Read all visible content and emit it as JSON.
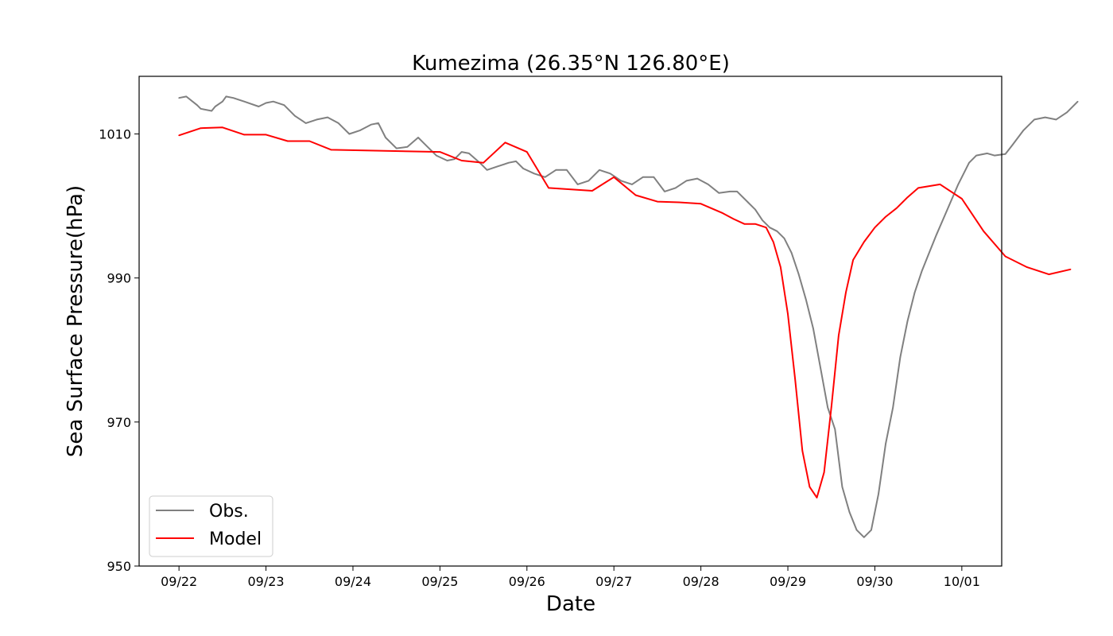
{
  "chart_data": {
    "type": "line",
    "title": "Kumezima (26.35°N 126.80°E)",
    "xlabel": "Date",
    "ylabel": "Sea Surface Pressure(hPa)",
    "xlim": [
      "09/21 13:00",
      "10/01 11:00"
    ],
    "ylim": [
      950,
      1018
    ],
    "x_ticks": [
      "09/22",
      "09/23",
      "09/24",
      "09/25",
      "09/26",
      "09/27",
      "09/28",
      "09/29",
      "09/30",
      "10/01"
    ],
    "y_ticks": [
      950,
      970,
      990,
      1010
    ],
    "grid": false,
    "legend_position": "lower-left",
    "series": [
      {
        "name": "Obs.",
        "color": "#808080",
        "points": [
          [
            "09/22 00:00",
            1015.0
          ],
          [
            "09/22 02:00",
            1015.2
          ],
          [
            "09/22 05:00",
            1014.0
          ],
          [
            "09/22 06:00",
            1013.5
          ],
          [
            "09/22 09:00",
            1013.2
          ],
          [
            "09/22 10:00",
            1013.8
          ],
          [
            "09/22 12:00",
            1014.5
          ],
          [
            "09/22 13:00",
            1015.2
          ],
          [
            "09/22 15:00",
            1015.0
          ],
          [
            "09/22 18:00",
            1014.5
          ],
          [
            "09/22 22:00",
            1013.8
          ],
          [
            "09/23 00:00",
            1014.3
          ],
          [
            "09/23 02:00",
            1014.5
          ],
          [
            "09/23 05:00",
            1014.0
          ],
          [
            "09/23 08:00",
            1012.5
          ],
          [
            "09/23 11:00",
            1011.5
          ],
          [
            "09/23 14:00",
            1012.0
          ],
          [
            "09/23 17:00",
            1012.3
          ],
          [
            "09/23 20:00",
            1011.5
          ],
          [
            "09/23 23:00",
            1010.0
          ],
          [
            "09/24 02:00",
            1010.5
          ],
          [
            "09/24 05:00",
            1011.3
          ],
          [
            "09/24 07:00",
            1011.5
          ],
          [
            "09/24 09:00",
            1009.5
          ],
          [
            "09/24 12:00",
            1008.0
          ],
          [
            "09/24 15:00",
            1008.2
          ],
          [
            "09/24 18:00",
            1009.5
          ],
          [
            "09/24 20:00",
            1008.5
          ],
          [
            "09/24 23:00",
            1007.0
          ],
          [
            "09/25 02:00",
            1006.3
          ],
          [
            "09/25 04:00",
            1006.5
          ],
          [
            "09/25 06:00",
            1007.5
          ],
          [
            "09/25 08:00",
            1007.3
          ],
          [
            "09/25 11:00",
            1006.0
          ],
          [
            "09/25 13:00",
            1005.0
          ],
          [
            "09/25 16:00",
            1005.5
          ],
          [
            "09/25 19:00",
            1006.0
          ],
          [
            "09/25 21:00",
            1006.2
          ],
          [
            "09/25 23:00",
            1005.2
          ],
          [
            "09/26 02:00",
            1004.5
          ],
          [
            "09/26 05:00",
            1004.0
          ],
          [
            "09/26 08:00",
            1005.0
          ],
          [
            "09/26 11:00",
            1005.0
          ],
          [
            "09/26 14:00",
            1003.0
          ],
          [
            "09/26 17:00",
            1003.5
          ],
          [
            "09/26 20:00",
            1005.0
          ],
          [
            "09/26 23:00",
            1004.5
          ],
          [
            "09/27 02:00",
            1003.5
          ],
          [
            "09/27 05:00",
            1003.0
          ],
          [
            "09/27 08:00",
            1004.0
          ],
          [
            "09/27 11:00",
            1004.0
          ],
          [
            "09/27 14:00",
            1002.0
          ],
          [
            "09/27 17:00",
            1002.5
          ],
          [
            "09/27 20:00",
            1003.5
          ],
          [
            "09/27 23:00",
            1003.8
          ],
          [
            "09/28 02:00",
            1003.0
          ],
          [
            "09/28 05:00",
            1001.8
          ],
          [
            "09/28 08:00",
            1002.0
          ],
          [
            "09/28 10:00",
            1002.0
          ],
          [
            "09/28 13:00",
            1000.5
          ],
          [
            "09/28 15:00",
            999.5
          ],
          [
            "09/28 17:00",
            998.0
          ],
          [
            "09/28 19:00",
            997.0
          ],
          [
            "09/28 21:00",
            996.5
          ],
          [
            "09/28 23:00",
            995.5
          ],
          [
            "09/29 01:00",
            993.5
          ],
          [
            "09/29 03:00",
            990.5
          ],
          [
            "09/29 05:00",
            987.0
          ],
          [
            "09/29 07:00",
            983.0
          ],
          [
            "09/29 09:00",
            977.5
          ],
          [
            "09/29 11:00",
            972.0
          ],
          [
            "09/29 13:00",
            969.0
          ],
          [
            "09/29 15:00",
            961.0
          ],
          [
            "09/29 17:00",
            957.5
          ],
          [
            "09/29 19:00",
            955.0
          ],
          [
            "09/29 21:00",
            954.0
          ],
          [
            "09/29 23:00",
            955.0
          ],
          [
            "09/30 01:00",
            960.0
          ],
          [
            "09/30 03:00",
            967.0
          ],
          [
            "09/30 05:00",
            972.0
          ],
          [
            "09/30 07:00",
            979.0
          ],
          [
            "09/30 09:00",
            984.0
          ],
          [
            "09/30 11:00",
            988.0
          ],
          [
            "09/30 13:00",
            991.0
          ],
          [
            "09/30 15:00",
            993.5
          ],
          [
            "09/30 17:00",
            996.0
          ],
          [
            "09/30 20:00",
            999.5
          ],
          [
            "09/30 23:00",
            1003.0
          ],
          [
            "10/01 02:00",
            1006.0
          ],
          [
            "10/01 04:00",
            1007.0
          ],
          [
            "10/01 07:00",
            1007.3
          ],
          [
            "10/01 09:00",
            1007.0
          ],
          [
            "10/01 12:00",
            1007.2
          ],
          [
            "10/01 14:00",
            1008.5
          ],
          [
            "10/01 17:00",
            1010.5
          ],
          [
            "10/01 20:00",
            1012.0
          ],
          [
            "10/01 23:00",
            1012.3
          ],
          [
            "10/02 02:00",
            1012.0
          ],
          [
            "10/02 05:00",
            1013.0
          ],
          [
            "10/02 08:00",
            1014.5
          ]
        ]
      },
      {
        "name": "Model",
        "color": "#ff0000",
        "points": [
          [
            "09/22 00:00",
            1009.8
          ],
          [
            "09/22 06:00",
            1010.8
          ],
          [
            "09/22 12:00",
            1010.9
          ],
          [
            "09/22 18:00",
            1009.9
          ],
          [
            "09/23 00:00",
            1009.9
          ],
          [
            "09/23 06:00",
            1009.0
          ],
          [
            "09/23 12:00",
            1009.0
          ],
          [
            "09/23 18:00",
            1007.8
          ],
          [
            "09/25 00:00",
            1007.5
          ],
          [
            "09/25 06:00",
            1006.3
          ],
          [
            "09/25 12:00",
            1006.0
          ],
          [
            "09/25 18:00",
            1008.8
          ],
          [
            "09/26 00:00",
            1007.5
          ],
          [
            "09/26 06:00",
            1002.5
          ],
          [
            "09/26 18:00",
            1002.1
          ],
          [
            "09/27 00:00",
            1004.0
          ],
          [
            "09/27 06:00",
            1001.5
          ],
          [
            "09/27 12:00",
            1000.6
          ],
          [
            "09/27 18:00",
            1000.5
          ],
          [
            "09/28 00:00",
            1000.3
          ],
          [
            "09/28 06:00",
            999.0
          ],
          [
            "09/28 09:00",
            998.2
          ],
          [
            "09/28 12:00",
            997.5
          ],
          [
            "09/28 15:00",
            997.5
          ],
          [
            "09/28 18:00",
            997.0
          ],
          [
            "09/28 20:00",
            995.0
          ],
          [
            "09/28 22:00",
            991.5
          ],
          [
            "09/29 00:00",
            985.0
          ],
          [
            "09/29 02:00",
            976.0
          ],
          [
            "09/29 04:00",
            966.0
          ],
          [
            "09/29 06:00",
            961.0
          ],
          [
            "09/29 08:00",
            959.5
          ],
          [
            "09/29 10:00",
            963.0
          ],
          [
            "09/29 12:00",
            972.0
          ],
          [
            "09/29 14:00",
            982.0
          ],
          [
            "09/29 16:00",
            988.0
          ],
          [
            "09/29 18:00",
            992.5
          ],
          [
            "09/29 21:00",
            995.0
          ],
          [
            "09/30 00:00",
            997.0
          ],
          [
            "09/30 03:00",
            998.5
          ],
          [
            "09/30 06:00",
            999.7
          ],
          [
            "09/30 09:00",
            1001.2
          ],
          [
            "09/30 12:00",
            1002.5
          ],
          [
            "09/30 18:00",
            1003.0
          ],
          [
            "10/01 00:00",
            1001.0
          ],
          [
            "10/01 06:00",
            996.5
          ],
          [
            "10/01 12:00",
            993.0
          ],
          [
            "10/01 18:00",
            991.5
          ],
          [
            "10/02 00:00",
            990.5
          ],
          [
            "10/02 06:00",
            991.2
          ]
        ]
      }
    ]
  }
}
